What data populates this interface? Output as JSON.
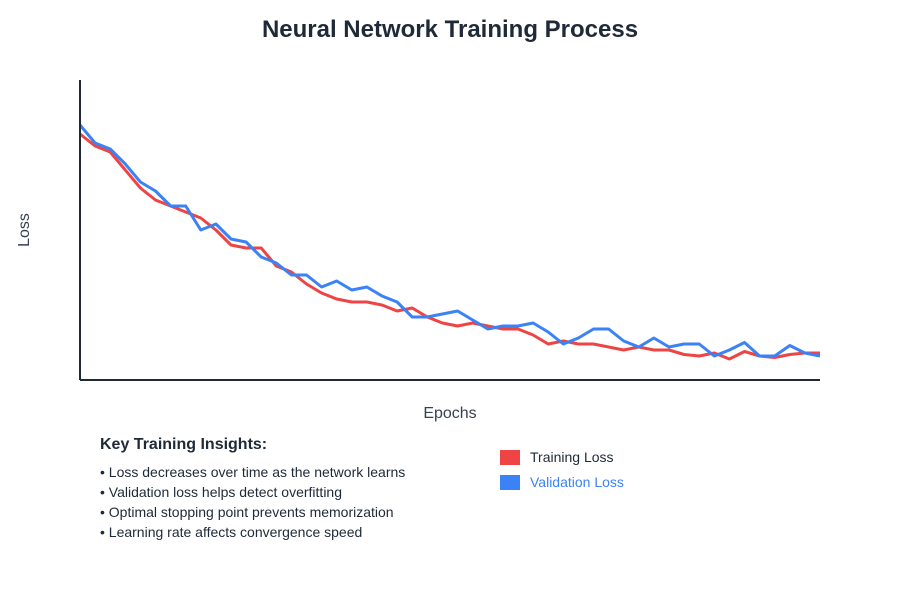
{
  "colors": {
    "training": "#ef4444",
    "validation": "#3b82f6",
    "axis": "#1f2937",
    "text": "#1f2937",
    "muted": "#374151"
  },
  "chart_data": {
    "type": "line",
    "title": "Neural Network Training Process",
    "xlabel": "Epochs",
    "ylabel": "Loss",
    "grid": false,
    "legend_placement": "bottom-right",
    "xlim": [
      0,
      49
    ],
    "ylim": [
      0,
      1
    ],
    "x": [
      0,
      1,
      2,
      3,
      4,
      5,
      6,
      7,
      8,
      9,
      10,
      11,
      12,
      13,
      14,
      15,
      16,
      17,
      18,
      19,
      20,
      21,
      22,
      23,
      24,
      25,
      26,
      27,
      28,
      29,
      30,
      31,
      32,
      33,
      34,
      35,
      36,
      37,
      38,
      39,
      40,
      41,
      42,
      43,
      44,
      45,
      46,
      47,
      48,
      49
    ],
    "series": [
      {
        "name": "Training Loss",
        "color": "#ef4444",
        "values": [
          0.82,
          0.78,
          0.76,
          0.7,
          0.64,
          0.6,
          0.58,
          0.56,
          0.54,
          0.5,
          0.45,
          0.44,
          0.44,
          0.38,
          0.36,
          0.32,
          0.29,
          0.27,
          0.26,
          0.26,
          0.25,
          0.23,
          0.24,
          0.21,
          0.19,
          0.18,
          0.19,
          0.18,
          0.17,
          0.17,
          0.15,
          0.12,
          0.13,
          0.12,
          0.12,
          0.11,
          0.1,
          0.11,
          0.1,
          0.1,
          0.085,
          0.08,
          0.09,
          0.07,
          0.095,
          0.08,
          0.075,
          0.085,
          0.09,
          0.09
        ]
      },
      {
        "name": "Validation Loss",
        "color": "#3b82f6",
        "values": [
          0.85,
          0.79,
          0.77,
          0.72,
          0.66,
          0.63,
          0.58,
          0.58,
          0.5,
          0.52,
          0.47,
          0.46,
          0.41,
          0.39,
          0.35,
          0.35,
          0.31,
          0.33,
          0.3,
          0.31,
          0.28,
          0.26,
          0.21,
          0.21,
          0.22,
          0.23,
          0.2,
          0.17,
          0.18,
          0.18,
          0.19,
          0.16,
          0.12,
          0.14,
          0.17,
          0.17,
          0.13,
          0.11,
          0.14,
          0.11,
          0.12,
          0.12,
          0.08,
          0.1,
          0.125,
          0.08,
          0.08,
          0.115,
          0.09,
          0.08
        ]
      }
    ]
  },
  "insights": {
    "title": "Key Training Insights:",
    "items": [
      "• Loss decreases over time as the network learns",
      "• Validation loss helps detect overfitting",
      "• Optimal stopping point prevents memorization",
      "• Learning rate affects convergence speed"
    ]
  },
  "legend": {
    "items": [
      {
        "label": "Training Loss",
        "color": "#ef4444",
        "text_color": "#1f2937"
      },
      {
        "label": "Validation Loss",
        "color": "#3b82f6",
        "text_color": "#3b82f6"
      }
    ]
  }
}
